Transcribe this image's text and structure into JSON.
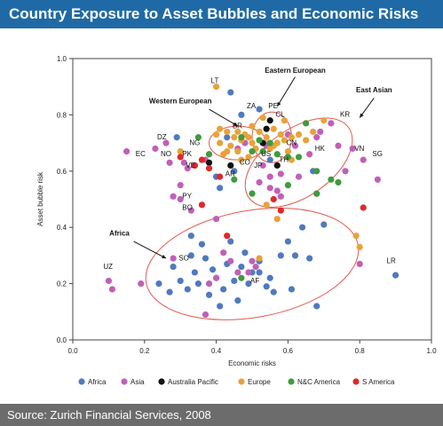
{
  "header": {
    "title": "Country Exposure to Asset Bubbles and Economic Risks"
  },
  "footer": {
    "source": "Source: Zurich Financial Services, 2008"
  },
  "colors": {
    "header_bg": "#1f6aa6",
    "footer_bg": "#6c6c6c",
    "ellipse": "#e05a4f",
    "Africa": "#4f79c0",
    "Asia": "#c060b8",
    "Australia Pacific": "#111111",
    "Europe": "#e8a23a",
    "N&C America": "#3e9b3e",
    "S America": "#e0282a"
  },
  "chart_data": {
    "type": "scatter",
    "title": "Country Exposure to Asset Bubbles and Economic Risks",
    "xlabel": "Economic risks",
    "ylabel": "Asset bubble risk",
    "xlim": [
      0,
      1
    ],
    "ylim": [
      0,
      1
    ],
    "xticks": [
      "0.0",
      "0.2",
      "0.4",
      "0.6",
      "0.8",
      "1.0"
    ],
    "yticks": [
      "0.0",
      "0.2",
      "0.4",
      "0.6",
      "0.8",
      "1.0"
    ],
    "legend_position": "bottom",
    "legend": [
      "Africa",
      "Asia",
      "Australia Pacific",
      "Europe",
      "N&C America",
      "S America"
    ],
    "series": [
      {
        "name": "Africa",
        "points": [
          [
            0.9,
            0.23
          ],
          [
            0.68,
            0.12
          ],
          [
            0.62,
            0.3
          ],
          [
            0.61,
            0.18
          ],
          [
            0.56,
            0.17
          ],
          [
            0.55,
            0.22
          ],
          [
            0.52,
            0.28
          ],
          [
            0.5,
            0.24
          ],
          [
            0.47,
            0.26
          ],
          [
            0.46,
            0.14
          ],
          [
            0.45,
            0.21
          ],
          [
            0.43,
            0.27
          ],
          [
            0.42,
            0.18
          ],
          [
            0.4,
            0.22
          ],
          [
            0.39,
            0.25
          ],
          [
            0.38,
            0.16
          ],
          [
            0.37,
            0.29
          ],
          [
            0.35,
            0.2
          ],
          [
            0.34,
            0.24
          ],
          [
            0.33,
            0.3
          ],
          [
            0.32,
            0.18
          ],
          [
            0.3,
            0.21
          ],
          [
            0.28,
            0.26
          ],
          [
            0.27,
            0.17
          ],
          [
            0.24,
            0.2
          ],
          [
            0.52,
            0.24
          ],
          [
            0.48,
            0.31
          ],
          [
            0.6,
            0.35
          ],
          [
            0.64,
            0.4
          ],
          [
            0.66,
            0.29
          ],
          [
            0.7,
            0.41
          ],
          [
            0.44,
            0.35
          ],
          [
            0.36,
            0.34
          ],
          [
            0.58,
            0.3
          ],
          [
            0.54,
            0.19
          ],
          [
            0.49,
            0.2
          ],
          [
            0.41,
            0.12
          ],
          [
            0.33,
            0.37
          ],
          [
            0.45,
            0.6
          ],
          [
            0.4,
            0.58
          ],
          [
            0.43,
            0.72
          ],
          [
            0.47,
            0.8
          ],
          [
            0.52,
            0.82
          ],
          [
            0.55,
            0.64
          ],
          [
            0.44,
            0.88
          ],
          [
            0.41,
            0.54
          ],
          [
            0.29,
            0.72
          ],
          [
            0.67,
            0.6
          ]
        ]
      },
      {
        "name": "Asia",
        "points": [
          [
            0.1,
            0.21
          ],
          [
            0.11,
            0.18
          ],
          [
            0.15,
            0.67
          ],
          [
            0.19,
            0.2
          ],
          [
            0.23,
            0.68
          ],
          [
            0.26,
            0.7
          ],
          [
            0.27,
            0.63
          ],
          [
            0.28,
            0.29
          ],
          [
            0.3,
            0.5
          ],
          [
            0.31,
            0.63
          ],
          [
            0.32,
            0.61
          ],
          [
            0.3,
            0.55
          ],
          [
            0.33,
            0.46
          ],
          [
            0.34,
            0.62
          ],
          [
            0.37,
            0.09
          ],
          [
            0.38,
            0.2
          ],
          [
            0.4,
            0.43
          ],
          [
            0.44,
            0.28
          ],
          [
            0.46,
            0.24
          ],
          [
            0.49,
            0.24
          ],
          [
            0.5,
            0.28
          ],
          [
            0.52,
            0.56
          ],
          [
            0.53,
            0.62
          ],
          [
            0.54,
            0.69
          ],
          [
            0.55,
            0.58
          ],
          [
            0.57,
            0.53
          ],
          [
            0.58,
            0.51
          ],
          [
            0.6,
            0.73
          ],
          [
            0.62,
            0.69
          ],
          [
            0.66,
            0.66
          ],
          [
            0.68,
            0.72
          ],
          [
            0.69,
            0.74
          ],
          [
            0.72,
            0.77
          ],
          [
            0.74,
            0.69
          ],
          [
            0.78,
            0.68
          ],
          [
            0.81,
            0.64
          ],
          [
            0.85,
            0.57
          ],
          [
            0.76,
            0.6
          ],
          [
            0.68,
            0.52
          ],
          [
            0.58,
            0.59
          ],
          [
            0.8,
            0.27
          ],
          [
            0.4,
            0.22
          ],
          [
            0.51,
            0.26
          ],
          [
            0.37,
            0.64
          ],
          [
            0.42,
            0.31
          ],
          [
            0.46,
            0.68
          ],
          [
            0.28,
            0.51
          ],
          [
            0.63,
            0.58
          ],
          [
            0.48,
            0.7
          ],
          [
            0.55,
            0.54
          ]
        ]
      },
      {
        "name": "Australia Pacific",
        "points": [
          [
            0.38,
            0.63
          ],
          [
            0.44,
            0.62
          ],
          [
            0.54,
            0.75
          ],
          [
            0.57,
            0.62
          ],
          [
            0.53,
            0.7
          ],
          [
            0.55,
            0.78
          ]
        ]
      },
      {
        "name": "Europe",
        "points": [
          [
            0.3,
            0.67
          ],
          [
            0.4,
            0.9
          ],
          [
            0.4,
            0.73
          ],
          [
            0.41,
            0.7
          ],
          [
            0.42,
            0.66
          ],
          [
            0.43,
            0.74
          ],
          [
            0.44,
            0.69
          ],
          [
            0.45,
            0.72
          ],
          [
            0.46,
            0.67
          ],
          [
            0.47,
            0.71
          ],
          [
            0.48,
            0.73
          ],
          [
            0.49,
            0.65
          ],
          [
            0.5,
            0.7
          ],
          [
            0.51,
            0.68
          ],
          [
            0.52,
            0.74
          ],
          [
            0.53,
            0.79
          ],
          [
            0.54,
            0.72
          ],
          [
            0.55,
            0.68
          ],
          [
            0.56,
            0.75
          ],
          [
            0.57,
            0.7
          ],
          [
            0.58,
            0.73
          ],
          [
            0.59,
            0.71
          ],
          [
            0.6,
            0.67
          ],
          [
            0.61,
            0.72
          ],
          [
            0.63,
            0.73
          ],
          [
            0.65,
            0.71
          ],
          [
            0.67,
            0.74
          ],
          [
            0.7,
            0.78
          ],
          [
            0.79,
            0.37
          ],
          [
            0.8,
            0.33
          ],
          [
            0.52,
            0.29
          ],
          [
            0.57,
            0.43
          ],
          [
            0.54,
            0.48
          ],
          [
            0.61,
            0.64
          ],
          [
            0.46,
            0.74
          ],
          [
            0.5,
            0.76
          ],
          [
            0.43,
            0.67
          ],
          [
            0.47,
            0.64
          ],
          [
            0.56,
            0.69
          ],
          [
            0.59,
            0.78
          ],
          [
            0.49,
            0.72
          ],
          [
            0.41,
            0.75
          ]
        ]
      },
      {
        "name": "N&C America",
        "points": [
          [
            0.35,
            0.72
          ],
          [
            0.38,
            0.66
          ],
          [
            0.47,
            0.72
          ],
          [
            0.5,
            0.67
          ],
          [
            0.52,
            0.71
          ],
          [
            0.55,
            0.7
          ],
          [
            0.57,
            0.66
          ],
          [
            0.6,
            0.65
          ],
          [
            0.63,
            0.65
          ],
          [
            0.65,
            0.77
          ],
          [
            0.68,
            0.6
          ],
          [
            0.72,
            0.57
          ],
          [
            0.68,
            0.52
          ],
          [
            0.6,
            0.55
          ],
          [
            0.45,
            0.57
          ],
          [
            0.5,
            0.52
          ],
          [
            0.47,
            0.22
          ],
          [
            0.74,
            0.56
          ],
          [
            0.53,
            0.67
          ]
        ]
      },
      {
        "name": "S America",
        "points": [
          [
            0.34,
            0.62
          ],
          [
            0.36,
            0.64
          ],
          [
            0.36,
            0.48
          ],
          [
            0.38,
            0.61
          ],
          [
            0.41,
            0.58
          ],
          [
            0.43,
            0.37
          ],
          [
            0.56,
            0.5
          ],
          [
            0.58,
            0.46
          ],
          [
            0.81,
            0.47
          ],
          [
            0.3,
            0.65
          ]
        ]
      }
    ],
    "country_labels": [
      {
        "text": "LT",
        "x": 0.4,
        "y": 0.9
      },
      {
        "text": "ZA",
        "x": 0.5,
        "y": 0.81
      },
      {
        "text": "PE",
        "x": 0.56,
        "y": 0.81
      },
      {
        "text": "CL",
        "x": 0.58,
        "y": 0.78
      },
      {
        "text": "KR",
        "x": 0.76,
        "y": 0.78
      },
      {
        "text": "BR",
        "x": 0.46,
        "y": 0.74
      },
      {
        "text": "DZ",
        "x": 0.25,
        "y": 0.7
      },
      {
        "text": "NG",
        "x": 0.34,
        "y": 0.68
      },
      {
        "text": "EC",
        "x": 0.19,
        "y": 0.64
      },
      {
        "text": "NO",
        "x": 0.26,
        "y": 0.64
      },
      {
        "text": "PK",
        "x": 0.32,
        "y": 0.64
      },
      {
        "text": "VE",
        "x": 0.33,
        "y": 0.6
      },
      {
        "text": "HK",
        "x": 0.69,
        "y": 0.66
      },
      {
        "text": "VN",
        "x": 0.8,
        "y": 0.66
      },
      {
        "text": "SG",
        "x": 0.85,
        "y": 0.64
      },
      {
        "text": "CN",
        "x": 0.61,
        "y": 0.68
      },
      {
        "text": "US",
        "x": 0.54,
        "y": 0.64
      },
      {
        "text": "JP",
        "x": 0.52,
        "y": 0.6
      },
      {
        "text": "TH",
        "x": 0.59,
        "y": 0.62
      },
      {
        "text": "CO",
        "x": 0.48,
        "y": 0.61
      },
      {
        "text": "AR",
        "x": 0.44,
        "y": 0.57
      },
      {
        "text": "PY",
        "x": 0.32,
        "y": 0.49
      },
      {
        "text": "BO",
        "x": 0.32,
        "y": 0.45
      },
      {
        "text": "UZ",
        "x": 0.1,
        "y": 0.24
      },
      {
        "text": "SO",
        "x": 0.31,
        "y": 0.27
      },
      {
        "text": "AF",
        "x": 0.51,
        "y": 0.19
      },
      {
        "text": "LR",
        "x": 0.89,
        "y": 0.26
      }
    ],
    "annotations": [
      {
        "text": "Eastern European",
        "x": 0.62,
        "y": 0.95
      },
      {
        "text": "Western European",
        "x": 0.3,
        "y": 0.84
      },
      {
        "text": "East Asian",
        "x": 0.84,
        "y": 0.88
      },
      {
        "text": "Africa",
        "x": 0.13,
        "y": 0.37
      }
    ],
    "grid": false
  }
}
